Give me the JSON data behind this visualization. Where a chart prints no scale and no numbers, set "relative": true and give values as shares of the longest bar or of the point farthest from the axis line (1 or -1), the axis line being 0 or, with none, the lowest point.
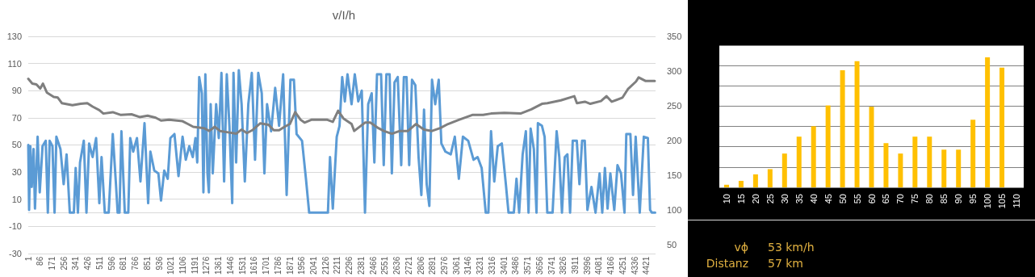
{
  "chart_data": [
    {
      "type": "line",
      "title": "v/I/h",
      "xlim": [
        1,
        4485
      ],
      "xticks": [
        1,
        86,
        171,
        256,
        341,
        426,
        511,
        596,
        681,
        766,
        851,
        936,
        1021,
        1106,
        1191,
        1276,
        1361,
        1446,
        1531,
        1616,
        1701,
        1786,
        1871,
        1956,
        2041,
        2126,
        2211,
        2296,
        2381,
        2466,
        2551,
        2636,
        2721,
        2806,
        2891,
        2976,
        3061,
        3146,
        3231,
        3316,
        3401,
        3486,
        3571,
        3656,
        3741,
        3826,
        3911,
        3996,
        4081,
        4166,
        4251,
        4336,
        4421
      ],
      "ylim": [
        -30,
        130
      ],
      "yticks": [
        -30,
        -10,
        10,
        30,
        50,
        70,
        90,
        110,
        130
      ],
      "y2lim": [
        38,
        350
      ],
      "y2ticks": [
        50,
        100,
        150,
        200,
        250,
        300,
        350
      ],
      "grid": "y",
      "series": [
        {
          "color": "#5b9bd5",
          "x": [
            1,
            7,
            16,
            26,
            39,
            49,
            68,
            83,
            103,
            126,
            141,
            154,
            174,
            189,
            202,
            231,
            254,
            275,
            298,
            327,
            340,
            356,
            371,
            398,
            417,
            436,
            461,
            486,
            509,
            525,
            548,
            576,
            605,
            628,
            640,
            653,
            667,
            691,
            716,
            730,
            751,
            778,
            803,
            832,
            858,
            874,
            902,
            931,
            950,
            973,
            998,
            1017,
            1046,
            1075,
            1104,
            1127,
            1152,
            1177,
            1196,
            1209,
            1223,
            1242,
            1253,
            1267,
            1282,
            1292,
            1305,
            1320,
            1344,
            1363,
            1382,
            1401,
            1420,
            1439,
            1459,
            1468,
            1487,
            1506,
            1526,
            1549,
            1574,
            1599,
            1622,
            1645,
            1670,
            1689,
            1708,
            1737,
            1766,
            1794,
            1823,
            1848,
            1875,
            1900,
            1919,
            1958,
            1986,
            2009,
            2034,
            2143,
            2158,
            2178,
            2206,
            2226,
            2245,
            2264,
            2283,
            2312,
            2335,
            2360,
            2385,
            2408,
            2431,
            2456,
            2475,
            2494,
            2523,
            2542,
            2561,
            2584,
            2600,
            2619,
            2642,
            2667,
            2686,
            2705,
            2724,
            2744,
            2768,
            2791,
            2811,
            2830,
            2849,
            2868,
            2887,
            2910,
            2935,
            2954,
            2983,
            3021,
            3050,
            3079,
            3108,
            3146,
            3184,
            3213,
            3242,
            3271,
            3290,
            3309,
            3332,
            3357,
            3386,
            3415,
            3434,
            3472,
            3491,
            3510,
            3535,
            3558,
            3577,
            3592,
            3615,
            3634,
            3644,
            3673,
            3692,
            3711,
            3749,
            3778,
            3797,
            3816,
            3836,
            3855,
            3874,
            3893,
            3922,
            3941,
            3960,
            3979,
            3998,
            4027,
            4056,
            4085,
            4104,
            4123,
            4142,
            4162,
            4190,
            4213,
            4238,
            4263,
            4276,
            4305,
            4324,
            4343,
            4372,
            4401,
            4430,
            4446,
            4459,
            4482
          ],
          "values": [
            50,
            2,
            49,
            19,
            47,
            3,
            56,
            15,
            49,
            53,
            0,
            53,
            49,
            0,
            56,
            47,
            21,
            43,
            0,
            0,
            33,
            0,
            37,
            53,
            0,
            51,
            41,
            55,
            7,
            41,
            0,
            0,
            58,
            21,
            0,
            0,
            60,
            0,
            0,
            55,
            45,
            55,
            23,
            66,
            7,
            45,
            31,
            29,
            9,
            31,
            25,
            55,
            58,
            27,
            56,
            39,
            49,
            41,
            55,
            37,
            100,
            88,
            15,
            102,
            29,
            15,
            80,
            29,
            80,
            55,
            103,
            23,
            102,
            64,
            7,
            103,
            37,
            105,
            80,
            23,
            80,
            103,
            39,
            103,
            88,
            29,
            80,
            60,
            92,
            64,
            102,
            13,
            98,
            98,
            58,
            53,
            25,
            0,
            0,
            0,
            41,
            3,
            56,
            64,
            100,
            82,
            102,
            80,
            102,
            82,
            90,
            0,
            80,
            88,
            37,
            102,
            102,
            35,
            102,
            102,
            29,
            96,
            100,
            35,
            100,
            100,
            35,
            98,
            94,
            41,
            13,
            76,
            21,
            5,
            98,
            80,
            98,
            51,
            45,
            43,
            56,
            25,
            56,
            53,
            39,
            41,
            33,
            0,
            0,
            60,
            23,
            49,
            51,
            21,
            0,
            0,
            25,
            0,
            43,
            60,
            0,
            62,
            47,
            0,
            66,
            64,
            56,
            0,
            0,
            60,
            41,
            0,
            41,
            43,
            0,
            53,
            53,
            21,
            53,
            53,
            2,
            19,
            0,
            29,
            0,
            33,
            3,
            29,
            2,
            35,
            29,
            0,
            58,
            58,
            13,
            56,
            0,
            56,
            55,
            2,
            0,
            0
          ]
        },
        {
          "color": "#7f7f7f",
          "axis": "y2",
          "x": [
            1,
            30,
            59,
            87,
            106,
            135,
            183,
            212,
            241,
            317,
            375,
            423,
            461,
            509,
            538,
            605,
            663,
            739,
            797,
            854,
            912,
            950,
            1008,
            1104,
            1142,
            1180,
            1257,
            1295,
            1334,
            1372,
            1430,
            1487,
            1526,
            1564,
            1602,
            1660,
            1718,
            1756,
            1794,
            1833,
            1871,
            1909,
            1948,
            1976,
            2024,
            2139,
            2178,
            2216,
            2254,
            2312,
            2331,
            2408,
            2446,
            2504,
            2542,
            2600,
            2657,
            2715,
            2772,
            2830,
            2887,
            2945,
            3002,
            3079,
            3175,
            3252,
            3309,
            3405,
            3520,
            3597,
            3673,
            3712,
            3808,
            3904,
            3923,
            3980,
            4019,
            4095,
            4134,
            4172,
            4249,
            4287,
            4345,
            4364,
            4412,
            4479
          ],
          "values": [
            289,
            282,
            281,
            275,
            282,
            269,
            263,
            262,
            254,
            251,
            253,
            254,
            249,
            244,
            239,
            241,
            237,
            238,
            234,
            236,
            233,
            229,
            230,
            228,
            224,
            220,
            218,
            214,
            220,
            214,
            212,
            210,
            216,
            211,
            215,
            225,
            223,
            215,
            215,
            220,
            224,
            241,
            230,
            226,
            230,
            230,
            227,
            243,
            232,
            224,
            214,
            226,
            226,
            218,
            214,
            210,
            214,
            214,
            224,
            216,
            214,
            218,
            224,
            230,
            237,
            237,
            239,
            240,
            239,
            245,
            253,
            254,
            258,
            264,
            254,
            256,
            253,
            257,
            264,
            256,
            262,
            274,
            285,
            291,
            286,
            286
          ]
        }
      ]
    },
    {
      "type": "bar",
      "relative": true,
      "grid": "y",
      "color": "#ffc000",
      "categories": [
        "10",
        "15",
        "20",
        "25",
        "30",
        "35",
        "40",
        "45",
        "50",
        "55",
        "60",
        "65",
        "70",
        "75",
        "80",
        "85",
        "90",
        "95",
        "100",
        "105",
        "110"
      ],
      "values": [
        0.02,
        0.05,
        0.1,
        0.14,
        0.26,
        0.39,
        0.47,
        0.63,
        0.9,
        0.97,
        0.62,
        0.34,
        0.26,
        0.39,
        0.39,
        0.29,
        0.29,
        0.52,
        1,
        0.92,
        0
      ],
      "annotations": [
        "vϕ 53 km/h",
        "Distanz 57 km"
      ]
    }
  ]
}
